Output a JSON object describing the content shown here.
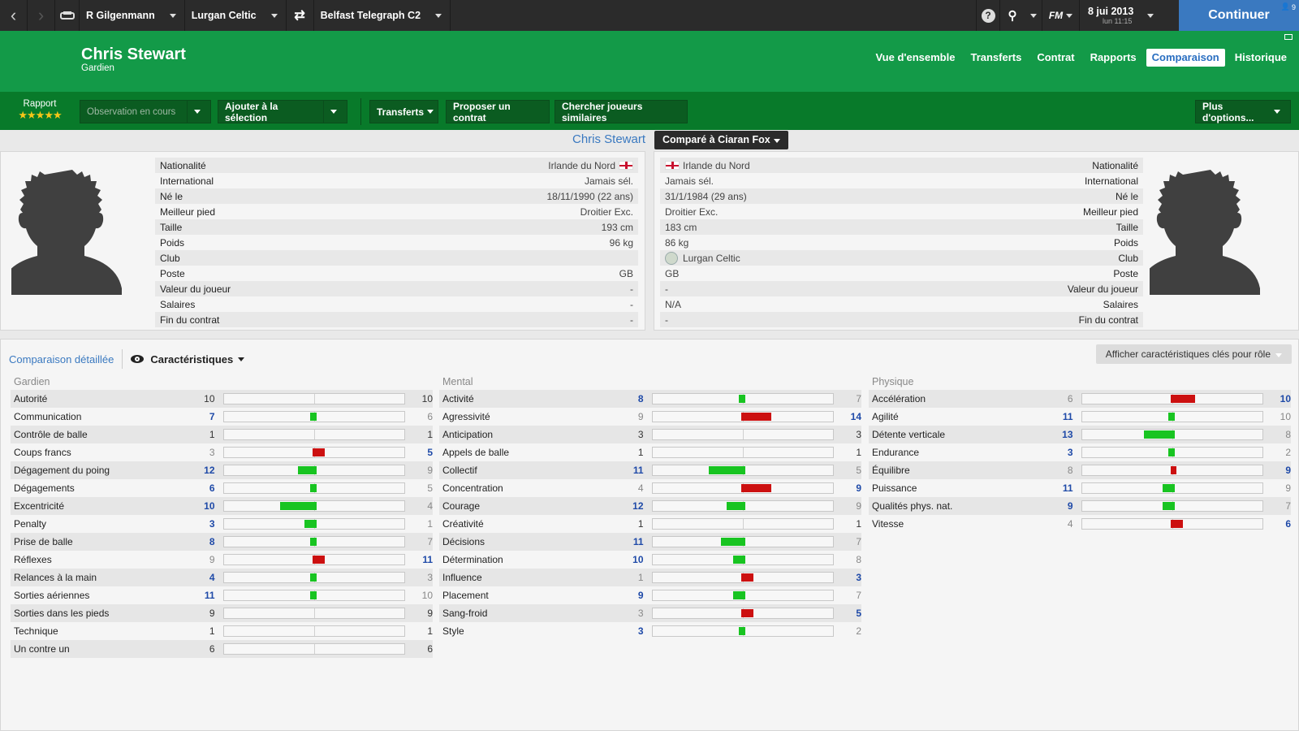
{
  "topbar": {
    "manager": "R Gilgenmann",
    "club": "Lurgan Celtic",
    "competition": "Belfast Telegraph C2",
    "fm_label": "FM",
    "date": "8 jui 2013",
    "time": "lun 11:15",
    "continue": "Continuer",
    "mail_count": "9"
  },
  "player": {
    "name": "Chris Stewart",
    "position": "Gardien"
  },
  "tabs": [
    "Vue d'ensemble",
    "Transferts",
    "Contrat",
    "Rapports",
    "Comparaison",
    "Historique"
  ],
  "toolbar": {
    "rapport_label": "Rapport",
    "stars": "★★★★★",
    "observation": "Observation en cours",
    "add_selection": "Ajouter à la sélection",
    "transferts": "Transferts",
    "propose": "Proposer un contrat",
    "similar": "Chercher joueurs similaires",
    "more": "Plus d'options..."
  },
  "compare": {
    "left_name": "Chris Stewart",
    "picker": "Comparé à Ciaran Fox"
  },
  "left_info": [
    {
      "label": "Nationalité",
      "value": "Irlande du Nord"
    },
    {
      "label": "International",
      "value": "Jamais sél."
    },
    {
      "label": "Né le",
      "value": "18/11/1990 (22 ans)"
    },
    {
      "label": "Meilleur pied",
      "value": "Droitier Exc."
    },
    {
      "label": "Taille",
      "value": "193 cm"
    },
    {
      "label": "Poids",
      "value": "96 kg"
    },
    {
      "label": "Club",
      "value": ""
    },
    {
      "label": "Poste",
      "value": "GB"
    },
    {
      "label": "Valeur du joueur",
      "value": "-"
    },
    {
      "label": "Salaires",
      "value": "-"
    },
    {
      "label": "Fin du contrat",
      "value": "-"
    }
  ],
  "right_info": [
    {
      "label": "Nationalité",
      "value": "Irlande du Nord"
    },
    {
      "label": "International",
      "value": "Jamais sél."
    },
    {
      "label": "Né le",
      "value": "31/1/1984 (29 ans)"
    },
    {
      "label": "Meilleur pied",
      "value": "Droitier Exc."
    },
    {
      "label": "Taille",
      "value": "183 cm"
    },
    {
      "label": "Poids",
      "value": "86 kg"
    },
    {
      "label": "Club",
      "value": "Lurgan Celtic"
    },
    {
      "label": "Poste",
      "value": "GB"
    },
    {
      "label": "Valeur du joueur",
      "value": "-"
    },
    {
      "label": "Salaires",
      "value": "N/A"
    },
    {
      "label": "Fin du contrat",
      "value": "-"
    }
  ],
  "detail": {
    "link": "Comparaison détaillée",
    "view": "Caractéristiques",
    "roles": "Afficher caractéristiques clés pour rôle"
  },
  "groups": [
    {
      "title": "Gardien",
      "attrs": [
        {
          "name": "Autorité",
          "a": 10,
          "b": 10
        },
        {
          "name": "Communication",
          "a": 7,
          "b": 6
        },
        {
          "name": "Contrôle de balle",
          "a": 1,
          "b": 1
        },
        {
          "name": "Coups francs",
          "a": 3,
          "b": 5
        },
        {
          "name": "Dégagement du poing",
          "a": 12,
          "b": 9
        },
        {
          "name": "Dégagements",
          "a": 6,
          "b": 5
        },
        {
          "name": "Excentricité",
          "a": 10,
          "b": 4
        },
        {
          "name": "Penalty",
          "a": 3,
          "b": 1
        },
        {
          "name": "Prise de balle",
          "a": 8,
          "b": 7
        },
        {
          "name": "Réflexes",
          "a": 9,
          "b": 11
        },
        {
          "name": "Relances à la main",
          "a": 4,
          "b": 3
        },
        {
          "name": "Sorties aériennes",
          "a": 11,
          "b": 10
        },
        {
          "name": "Sorties dans les pieds",
          "a": 9,
          "b": 9
        },
        {
          "name": "Technique",
          "a": 1,
          "b": 1
        },
        {
          "name": "Un contre un",
          "a": 6,
          "b": 6
        }
      ]
    },
    {
      "title": "Mental",
      "attrs": [
        {
          "name": "Activité",
          "a": 8,
          "b": 7
        },
        {
          "name": "Agressivité",
          "a": 9,
          "b": 14
        },
        {
          "name": "Anticipation",
          "a": 3,
          "b": 3
        },
        {
          "name": "Appels de balle",
          "a": 1,
          "b": 1
        },
        {
          "name": "Collectif",
          "a": 11,
          "b": 5
        },
        {
          "name": "Concentration",
          "a": 4,
          "b": 9
        },
        {
          "name": "Courage",
          "a": 12,
          "b": 9
        },
        {
          "name": "Créativité",
          "a": 1,
          "b": 1
        },
        {
          "name": "Décisions",
          "a": 11,
          "b": 7
        },
        {
          "name": "Détermination",
          "a": 10,
          "b": 8
        },
        {
          "name": "Influence",
          "a": 1,
          "b": 3
        },
        {
          "name": "Placement",
          "a": 9,
          "b": 7
        },
        {
          "name": "Sang-froid",
          "a": 3,
          "b": 5
        },
        {
          "name": "Style",
          "a": 3,
          "b": 2
        }
      ]
    },
    {
      "title": "Physique",
      "attrs": [
        {
          "name": "Accélération",
          "a": 6,
          "b": 10
        },
        {
          "name": "Agilité",
          "a": 11,
          "b": 10
        },
        {
          "name": "Détente verticale",
          "a": 13,
          "b": 8
        },
        {
          "name": "Endurance",
          "a": 3,
          "b": 2
        },
        {
          "name": "Équilibre",
          "a": 8,
          "b": 9
        },
        {
          "name": "Puissance",
          "a": 11,
          "b": 9
        },
        {
          "name": "Qualités phys. nat.",
          "a": 9,
          "b": 7
        },
        {
          "name": "Vitesse",
          "a": 4,
          "b": 6
        }
      ]
    }
  ],
  "colors": {
    "better": "#18c421",
    "worse": "#cc1010",
    "header": "#139a48",
    "toolbar": "#087a2a",
    "accent": "#3a79c0"
  }
}
